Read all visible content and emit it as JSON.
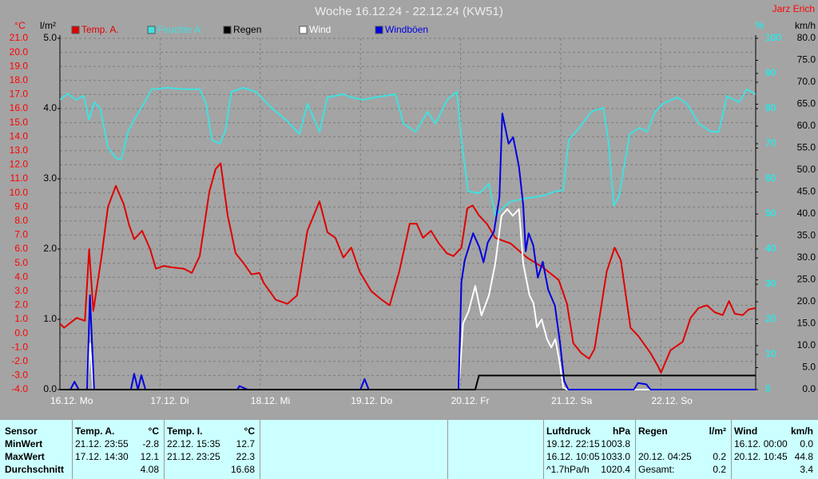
{
  "chart_data": {
    "type": "line",
    "title": "Woche 16.12.24 - 22.12.24 (KW51)",
    "author": "Jarz Erich",
    "y_label": "°C",
    "y2_label": "l/m²",
    "y3_label": "%",
    "y4_label": "km/h",
    "xlim": [
      0,
      166.7
    ],
    "xticks": [
      {
        "value": 0,
        "label": "16.12. Mo"
      },
      {
        "value": 24,
        "label": "17.12. Di"
      },
      {
        "value": 48,
        "label": "18.12. Mi"
      },
      {
        "value": 72,
        "label": "19.12. Do"
      },
      {
        "value": 96,
        "label": "20.12. Fr"
      },
      {
        "value": 120,
        "label": "21.12. Sa"
      },
      {
        "value": 144,
        "label": "22.12. So"
      }
    ],
    "ylim": [
      -4,
      21
    ],
    "yticks": [
      {
        "value": -4,
        "label": "-4.0"
      },
      {
        "value": -3,
        "label": "-3.0"
      },
      {
        "value": -2,
        "label": "-2.0"
      },
      {
        "value": -1,
        "label": "-1.0"
      },
      {
        "value": 0,
        "label": "0.0"
      },
      {
        "value": 1,
        "label": "1.0"
      },
      {
        "value": 2,
        "label": "2.0"
      },
      {
        "value": 3,
        "label": "3.0"
      },
      {
        "value": 4,
        "label": "4.0"
      },
      {
        "value": 5,
        "label": "5.0"
      },
      {
        "value": 6,
        "label": "6.0"
      },
      {
        "value": 7,
        "label": "7.0"
      },
      {
        "value": 8,
        "label": "8.0"
      },
      {
        "value": 9,
        "label": "9.0"
      },
      {
        "value": 10,
        "label": "10.0"
      },
      {
        "value": 11,
        "label": "11.0"
      },
      {
        "value": 12,
        "label": "12.0"
      },
      {
        "value": 13,
        "label": "13.0"
      },
      {
        "value": 14,
        "label": "14.0"
      },
      {
        "value": 15,
        "label": "15.0"
      },
      {
        "value": 16,
        "label": "16.0"
      },
      {
        "value": 17,
        "label": "17.0"
      },
      {
        "value": 18,
        "label": "18.0"
      },
      {
        "value": 19,
        "label": "19.0"
      },
      {
        "value": 20,
        "label": "20.0"
      },
      {
        "value": 21,
        "label": "21.0"
      }
    ],
    "y2lim": [
      0,
      5
    ],
    "y2ticks": [
      {
        "value": 0,
        "label": "0.0"
      },
      {
        "value": 1,
        "label": "1.0"
      },
      {
        "value": 2,
        "label": "2.0"
      },
      {
        "value": 3,
        "label": "3.0"
      },
      {
        "value": 4,
        "label": "4.0"
      },
      {
        "value": 5,
        "label": "5.0"
      }
    ],
    "y3lim": [
      0,
      100
    ],
    "y3ticks": [
      0,
      10,
      20,
      30,
      40,
      50,
      60,
      70,
      80,
      90,
      100
    ],
    "y4lim": [
      0,
      80
    ],
    "y4ticks": [
      {
        "value": 0,
        "label": "0.0"
      },
      {
        "value": 5,
        "label": "5.0"
      },
      {
        "value": 10,
        "label": "10.0"
      },
      {
        "value": 15,
        "label": "15.0"
      },
      {
        "value": 20,
        "label": "20.0"
      },
      {
        "value": 25,
        "label": "25.0"
      },
      {
        "value": 30,
        "label": "30.0"
      },
      {
        "value": 35,
        "label": "35.0"
      },
      {
        "value": 40,
        "label": "40.0"
      },
      {
        "value": 45,
        "label": "45.0"
      },
      {
        "value": 50,
        "label": "50.0"
      },
      {
        "value": 55,
        "label": "55.0"
      },
      {
        "value": 60,
        "label": "60.0"
      },
      {
        "value": 65,
        "label": "65.0"
      },
      {
        "value": 70,
        "label": "70.0"
      },
      {
        "value": 75,
        "label": "75.0"
      },
      {
        "value": 80,
        "label": "80.0"
      }
    ],
    "grid": true,
    "series": [
      {
        "name": "Temp. A.",
        "color": "#e00000",
        "axis": "y",
        "x": [
          0,
          1,
          4,
          6,
          7,
          8,
          10,
          11.5,
          13.4,
          15.3,
          16.6,
          17.8,
          19.7,
          21.6,
          23,
          24.9,
          26.8,
          29.7,
          31.6,
          33.5,
          35.8,
          37.3,
          38.5,
          40.2,
          42.1,
          44,
          45.9,
          47.8,
          48.8,
          51.7,
          54.5,
          56.8,
          59.3,
          62.2,
          64.1,
          66,
          67.9,
          69.8,
          71.8,
          74.6,
          77.1,
          79,
          81.3,
          83.8,
          85.5,
          87,
          88.9,
          90.8,
          92.7,
          94.3,
          96.2,
          97.6,
          98.9,
          100.4,
          102.3,
          104.3,
          108,
          111.9,
          115.7,
          119.5,
          121.5,
          123,
          124.9,
          126.8,
          128.1,
          131,
          132.9,
          134.4,
          136.7,
          138.6,
          141.5,
          143.4,
          144,
          146.3,
          149.2,
          151.1,
          153,
          155,
          156.9,
          158.8,
          160.3,
          161.7,
          163.6,
          165,
          166.7
        ],
        "values": [
          0.7,
          0.4,
          1.1,
          0.9,
          6.0,
          1.6,
          5.5,
          9.0,
          10.5,
          9.2,
          7.7,
          6.7,
          7.3,
          6.0,
          4.6,
          4.8,
          4.7,
          4.6,
          4.3,
          5.5,
          10.1,
          11.7,
          12.1,
          8.4,
          5.7,
          5.0,
          4.2,
          4.3,
          3.6,
          2.4,
          2.1,
          2.7,
          7.3,
          9.4,
          7.2,
          6.8,
          5.4,
          6.1,
          4.4,
          3.0,
          2.4,
          2.0,
          4.4,
          7.8,
          7.8,
          6.8,
          7.3,
          6.4,
          5.7,
          5.5,
          6.1,
          8.9,
          9.1,
          8.4,
          7.8,
          6.8,
          6.4,
          5.4,
          4.7,
          3.8,
          2.1,
          -0.7,
          -1.4,
          -1.8,
          -1.1,
          4.4,
          6.1,
          5.2,
          0.4,
          -0.2,
          -1.4,
          -2.4,
          -2.8,
          -1.2,
          -0.6,
          1.1,
          1.8,
          2.0,
          1.5,
          1.3,
          2.3,
          1.4,
          1.3,
          1.7,
          1.8
        ]
      },
      {
        "name": "Feuchte A.",
        "color": "#40e0e0",
        "axis": "y3",
        "x": [
          0,
          1.9,
          3.8,
          5.7,
          7,
          8.2,
          9.6,
          11.5,
          13.4,
          14.7,
          16.3,
          17.8,
          20.1,
          22,
          25.8,
          29.7,
          33.5,
          35,
          36.4,
          38.3,
          39.6,
          41.1,
          44,
          46.9,
          50.7,
          54.5,
          57.4,
          59.3,
          62.2,
          64.1,
          67.9,
          69.8,
          72.7,
          75.6,
          80.4,
          82.3,
          85.2,
          88.1,
          90,
          92.8,
          95.1,
          96.2,
          97.8,
          100.5,
          102.8,
          104.3,
          106.6,
          108.1,
          112,
          115.8,
          118.7,
          120.6,
          121.9,
          124.4,
          127.3,
          130.2,
          131.5,
          132.7,
          134,
          136.5,
          138.8,
          140.7,
          142.6,
          144.5,
          147.9,
          150.2,
          153.1,
          156,
          157.9,
          159.8,
          162.7,
          164.6,
          166.7
        ],
        "values": [
          82.5,
          84.3,
          82.5,
          83.6,
          76.8,
          81.8,
          80.2,
          68.9,
          65.9,
          65.5,
          73.4,
          76.8,
          81.4,
          85.5,
          85.9,
          85.5,
          85.5,
          81.4,
          71.1,
          70.0,
          73.4,
          84.8,
          85.9,
          84.8,
          80.2,
          76.4,
          72.7,
          81.4,
          73.4,
          83.2,
          84.1,
          83.2,
          82.5,
          83.2,
          84.1,
          75.7,
          73.4,
          79.1,
          75.7,
          82.5,
          84.8,
          71.1,
          56.4,
          55.9,
          58.6,
          49.5,
          52.3,
          53.6,
          54.5,
          55.2,
          56.4,
          56.8,
          71.1,
          74.5,
          79.1,
          80.2,
          70.0,
          52.3,
          55.2,
          72.7,
          74.5,
          73.4,
          79.1,
          81.4,
          83.2,
          81.4,
          75.7,
          73.4,
          73.4,
          83.6,
          81.8,
          85.5,
          84.1
        ]
      },
      {
        "name": "Regen",
        "color": "#000000",
        "axis": "y2",
        "x": [
          0,
          99.5,
          100.4,
          166.7
        ],
        "values": [
          0,
          0,
          0.2,
          0.2
        ]
      },
      {
        "name": "Wind",
        "color": "#ffffff",
        "axis": "y4",
        "x": [
          0,
          6.5,
          7.2,
          8,
          95.5,
          95.9,
          96.6,
          97.9,
          99.5,
          101,
          102.8,
          104.3,
          105.8,
          107.2,
          108.5,
          110,
          111,
          112.5,
          113.5,
          114.3,
          115.4,
          116.7,
          117.7,
          118.7,
          119.6,
          120.6,
          121.5,
          166.7
        ],
        "values": [
          0,
          0,
          10.5,
          0,
          0,
          5,
          15.1,
          17.8,
          23.6,
          16.9,
          21.5,
          28.7,
          39.6,
          41.1,
          39.6,
          41.1,
          28.7,
          21.5,
          19.6,
          14.2,
          16,
          11.5,
          9.6,
          11.5,
          6.9,
          0.5,
          0,
          0
        ]
      },
      {
        "name": "Windböen",
        "color": "#0000e0",
        "axis": "y4",
        "x": [
          0,
          2.5,
          3.5,
          4.5,
          6.5,
          7.2,
          8.2,
          17,
          17.8,
          18.7,
          19.5,
          20.5,
          42.5,
          43,
          45,
          72,
          73,
          74,
          95.5,
          96.2,
          97,
          99,
          100.5,
          101.5,
          102.5,
          104,
          105.3,
          106,
          107.5,
          108.6,
          110,
          111,
          111.6,
          112.3,
          113.4,
          114.5,
          115.7,
          117,
          118.6,
          119.9,
          120.8,
          121.8,
          137.5,
          138.5,
          140.5,
          141.5,
          166.7
        ],
        "values": [
          0,
          0,
          1.8,
          0,
          0,
          21.5,
          0,
          0,
          3.6,
          0,
          3.3,
          0,
          0,
          0.8,
          0,
          0,
          2.4,
          0,
          0,
          24.5,
          29.5,
          35.6,
          32.4,
          29,
          33.5,
          36,
          43.8,
          62.9,
          56,
          57.5,
          50.7,
          42,
          31.5,
          35.6,
          32.9,
          25.5,
          29.1,
          22.7,
          19.1,
          10,
          2,
          0,
          0,
          1.5,
          1.2,
          0,
          0
        ]
      }
    ]
  },
  "stats": {
    "sensor_header": "Sensor",
    "row_labels": [
      "MinWert",
      "MaxWert",
      "Durchschnitt"
    ],
    "groups": [
      {
        "title": "Temp. A.",
        "unit": "°C",
        "rows": [
          {
            "time": "21.12. 23:55",
            "value": "-2.8"
          },
          {
            "time": "17.12. 14:30",
            "value": "12.1"
          },
          {
            "value": "4.08"
          }
        ]
      },
      {
        "title": "Temp. I.",
        "unit": "°C",
        "rows": [
          {
            "time": "22.12. 15:35",
            "value": "12.7"
          },
          {
            "time": "21.12. 23:25",
            "value": "22.3"
          },
          {
            "value": "16.68"
          }
        ]
      },
      {
        "title": "Luftdruck",
        "unit": "hPa",
        "rows": [
          {
            "time": "19.12. 22:15",
            "value": "1003.8"
          },
          {
            "time": "16.12. 10:05",
            "value": "1033.0"
          },
          {
            "time": "^1.7hPa/h",
            "value": "1020.4"
          }
        ]
      },
      {
        "title": "Regen",
        "unit": "l/m²",
        "rows": [
          null,
          {
            "time": "20.12. 04:25",
            "value": "0.2"
          },
          {
            "time": "Gesamt:",
            "value": "0.2"
          }
        ]
      },
      {
        "title": "Wind",
        "unit": "km/h",
        "rows": [
          {
            "time": "16.12. 00:00",
            "value": "0.0"
          },
          {
            "time": "20.12. 10:45",
            "value": "44.8"
          },
          {
            "value": "3.4"
          }
        ]
      }
    ]
  }
}
